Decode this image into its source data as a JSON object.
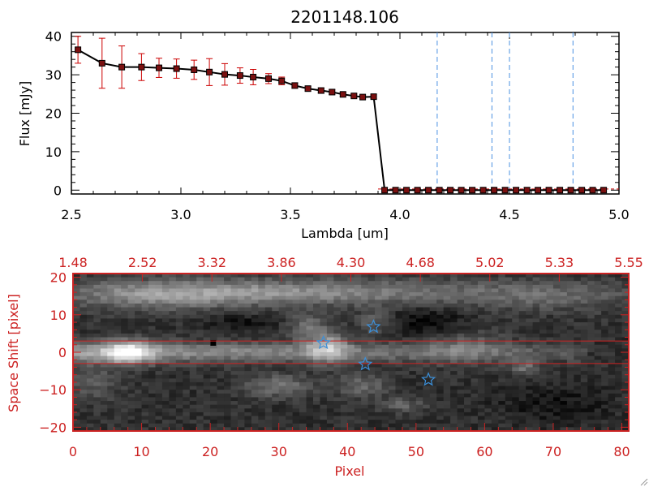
{
  "chart_data": [
    {
      "type": "scatter",
      "title": "2201148.106",
      "xlabel": "Lambda [um]",
      "ylabel": "Flux [mJy]",
      "xlim": [
        2.5,
        5.0
      ],
      "ylim": [
        -1,
        41
      ],
      "x_ticks": [
        "2.5",
        "3.0",
        "3.5",
        "4.0",
        "4.5",
        "5.0"
      ],
      "y_ticks": [
        "0",
        "10",
        "20",
        "30",
        "40"
      ],
      "x_tick_values": [
        2.5,
        3.0,
        3.5,
        4.0,
        4.5,
        5.0
      ],
      "y_tick_values": [
        0,
        10,
        20,
        30,
        40
      ],
      "series": [
        {
          "name": "Flux",
          "color": "#000000",
          "marker_color": "#7a1010",
          "errorbar_color": "#cc0000",
          "x": [
            2.53,
            2.64,
            2.73,
            2.82,
            2.9,
            2.98,
            3.06,
            3.13,
            3.2,
            3.27,
            3.33,
            3.4,
            3.46,
            3.52,
            3.58,
            3.64,
            3.69,
            3.74,
            3.79,
            3.83,
            3.88,
            3.93,
            3.98,
            4.03,
            4.08,
            4.13,
            4.18,
            4.23,
            4.28,
            4.33,
            4.38,
            4.43,
            4.48,
            4.53,
            4.58,
            4.63,
            4.68,
            4.73,
            4.78,
            4.83,
            4.88,
            4.93
          ],
          "y": [
            36.5,
            33,
            32,
            32,
            31.8,
            31.6,
            31.3,
            30.7,
            30.1,
            29.8,
            29.4,
            29.0,
            28.4,
            27.2,
            26.4,
            25.9,
            25.5,
            24.9,
            24.5,
            24.2,
            24.3,
            0,
            0,
            0,
            0,
            0,
            0,
            0,
            0,
            0,
            0,
            0,
            0,
            0,
            0,
            0,
            0,
            0,
            0,
            0,
            0,
            0
          ],
          "yerr": [
            3.5,
            6.5,
            5.5,
            3.5,
            2.5,
            2.5,
            2.5,
            3.5,
            2.8,
            2.0,
            2.0,
            1.3,
            1.0,
            0.7,
            0.6,
            0.6,
            0.6,
            0.5,
            0.5,
            0.5,
            0.5,
            0,
            0,
            0,
            0,
            0,
            0,
            0,
            0,
            0,
            0,
            0,
            0,
            0,
            0,
            0,
            0,
            0,
            0,
            0,
            0,
            0
          ]
        }
      ],
      "vlines": {
        "color": "#4a90e2",
        "style": "dashed",
        "x": [
          4.17,
          4.42,
          4.5,
          4.79
        ]
      }
    },
    {
      "type": "heatmap",
      "xlabel": "Pixel",
      "ylabel": "Space Shift [pixel]",
      "xlim": [
        0,
        81
      ],
      "ylim": [
        -21,
        21
      ],
      "x_ticks": [
        "0",
        "10",
        "20",
        "30",
        "40",
        "50",
        "60",
        "70",
        "80"
      ],
      "x_tick_values": [
        0,
        10,
        20,
        30,
        40,
        50,
        60,
        70,
        80
      ],
      "y_ticks": [
        "20",
        "10",
        "0",
        "−10",
        "−20"
      ],
      "y_tick_values": [
        20,
        10,
        0,
        -10,
        -20
      ],
      "top_ticks": [
        "1.48",
        "2.52",
        "3.32",
        "3.86",
        "4.30",
        "4.68",
        "5.02",
        "5.33",
        "5.55"
      ],
      "axis_color": "#cc2222",
      "aperture_lines": [
        3,
        -3
      ],
      "stars": [
        {
          "x": 36.5,
          "y": 2.5
        },
        {
          "x": 43.8,
          "y": 6.8
        },
        {
          "x": 42.6,
          "y": -3.2
        },
        {
          "x": 51.8,
          "y": -7.3
        }
      ],
      "star_color": "#3b8fd9",
      "dark_pixel": {
        "x": 20.5,
        "y": 2.5
      }
    }
  ]
}
